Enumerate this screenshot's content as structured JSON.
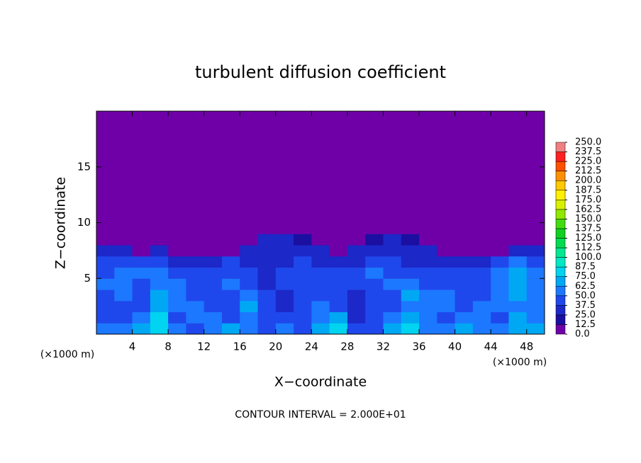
{
  "chart_data": {
    "type": "heatmap",
    "title": "turbulent diffusion coefficient",
    "xlabel": "X−coordinate",
    "ylabel": "Z−coordinate",
    "xunit": "(×1000 m)",
    "yunit": "(×1000 m)",
    "footer": "CONTOUR INTERVAL = 2.000E+01",
    "xlim": [
      0,
      50
    ],
    "xticks": [
      4,
      8,
      12,
      16,
      20,
      24,
      28,
      32,
      36,
      40,
      44,
      48
    ],
    "ylim": [
      0,
      20
    ],
    "yticks": [
      5,
      10,
      15
    ],
    "clim": [
      0,
      250
    ],
    "cticks": [
      {
        "value": 0,
        "label": "0.0"
      },
      {
        "value": 12.5,
        "label": "12.5"
      },
      {
        "value": 25,
        "label": "25.0"
      },
      {
        "value": 37.5,
        "label": "37.5"
      },
      {
        "value": 50,
        "label": "50.0"
      },
      {
        "value": 62.5,
        "label": "62.5"
      },
      {
        "value": 75,
        "label": "75.0"
      },
      {
        "value": 87.5,
        "label": "87.5"
      },
      {
        "value": 100,
        "label": "100.0"
      },
      {
        "value": 112.5,
        "label": "112.5"
      },
      {
        "value": 125,
        "label": "125.0"
      },
      {
        "value": 137.5,
        "label": "137.5"
      },
      {
        "value": 150,
        "label": "150.0"
      },
      {
        "value": 162.5,
        "label": "162.5"
      },
      {
        "value": 175,
        "label": "175.0"
      },
      {
        "value": 187.5,
        "label": "187.5"
      },
      {
        "value": 200,
        "label": "200.0"
      },
      {
        "value": 212.5,
        "label": "212.5"
      },
      {
        "value": 225,
        "label": "225.0"
      },
      {
        "value": 237.5,
        "label": "237.5"
      },
      {
        "value": 250,
        "label": "250.0"
      }
    ],
    "colors": [
      "#6f00a8",
      "#1a0fa0",
      "#1c28c8",
      "#1f48ec",
      "#1c78ff",
      "#00a8f4",
      "#00d4f0",
      "#00e8c4",
      "#00e890",
      "#00dc50",
      "#10d020",
      "#40dc10",
      "#90e800",
      "#d8f000",
      "#fff000",
      "#ffc800",
      "#ff9000",
      "#ff5000",
      "#ff2020",
      "#f08080"
    ],
    "z": [
      [
        60,
        55,
        70,
        80,
        50,
        45,
        60,
        70,
        50,
        45,
        55,
        40,
        70,
        75,
        40,
        45,
        70,
        75,
        60,
        55,
        70,
        60,
        50,
        70,
        65
      ],
      [
        45,
        40,
        50,
        75,
        45,
        50,
        60,
        45,
        50,
        40,
        45,
        40,
        60,
        70,
        35,
        40,
        60,
        70,
        50,
        45,
        55,
        60,
        45,
        65,
        60
      ],
      [
        40,
        45,
        40,
        70,
        50,
        60,
        45,
        40,
        65,
        40,
        35,
        40,
        50,
        45,
        35,
        40,
        45,
        60,
        60,
        50,
        40,
        50,
        55,
        60,
        55
      ],
      [
        45,
        50,
        40,
        65,
        60,
        45,
        40,
        40,
        60,
        40,
        35,
        40,
        45,
        40,
        35,
        40,
        40,
        65,
        60,
        55,
        40,
        40,
        60,
        65,
        55
      ],
      [
        50,
        55,
        45,
        60,
        55,
        40,
        40,
        60,
        40,
        35,
        40,
        40,
        40,
        40,
        40,
        45,
        60,
        50,
        45,
        40,
        40,
        40,
        60,
        70,
        60
      ],
      [
        45,
        60,
        50,
        50,
        40,
        40,
        45,
        40,
        40,
        35,
        40,
        45,
        40,
        40,
        40,
        60,
        45,
        40,
        40,
        40,
        40,
        45,
        55,
        65,
        55
      ],
      [
        40,
        45,
        40,
        40,
        35,
        30,
        35,
        40,
        35,
        30,
        35,
        40,
        35,
        30,
        35,
        40,
        40,
        35,
        30,
        30,
        25,
        35,
        40,
        50,
        45
      ],
      [
        30,
        35,
        0,
        25,
        0,
        0,
        0,
        0,
        25,
        30,
        35,
        30,
        25,
        0,
        30,
        35,
        35,
        30,
        25,
        0,
        0,
        0,
        0,
        35,
        35
      ],
      [
        0,
        0,
        0,
        0,
        0,
        0,
        0,
        0,
        0,
        25,
        25,
        20,
        0,
        0,
        0,
        20,
        25,
        15,
        0,
        0,
        0,
        0,
        0,
        0,
        0
      ],
      [
        0,
        0,
        0,
        0,
        0,
        0,
        0,
        0,
        0,
        0,
        0,
        0,
        0,
        0,
        0,
        0,
        0,
        0,
        0,
        0,
        0,
        0,
        0,
        0,
        0
      ],
      [
        0,
        0,
        0,
        0,
        0,
        0,
        0,
        0,
        0,
        0,
        0,
        0,
        0,
        0,
        0,
        0,
        0,
        0,
        0,
        0,
        0,
        0,
        0,
        0,
        0
      ],
      [
        0,
        0,
        0,
        0,
        0,
        0,
        0,
        0,
        0,
        0,
        0,
        0,
        0,
        0,
        0,
        0,
        0,
        0,
        0,
        0,
        0,
        0,
        0,
        0,
        0
      ],
      [
        0,
        0,
        0,
        0,
        0,
        0,
        0,
        0,
        0,
        0,
        0,
        0,
        0,
        0,
        0,
        0,
        0,
        0,
        0,
        0,
        0,
        0,
        0,
        0,
        0
      ],
      [
        0,
        0,
        0,
        0,
        0,
        0,
        0,
        0,
        0,
        0,
        0,
        0,
        0,
        0,
        0,
        0,
        0,
        0,
        0,
        0,
        0,
        0,
        0,
        0,
        0
      ],
      [
        0,
        0,
        0,
        0,
        0,
        0,
        0,
        0,
        0,
        0,
        0,
        0,
        0,
        0,
        0,
        0,
        0,
        0,
        0,
        0,
        0,
        0,
        0,
        0,
        0
      ],
      [
        0,
        0,
        0,
        0,
        0,
        0,
        0,
        0,
        0,
        0,
        0,
        0,
        0,
        0,
        0,
        0,
        0,
        0,
        0,
        0,
        0,
        0,
        0,
        0,
        0
      ],
      [
        0,
        0,
        0,
        0,
        0,
        0,
        0,
        0,
        0,
        0,
        0,
        0,
        0,
        0,
        0,
        0,
        0,
        0,
        0,
        0,
        0,
        0,
        0,
        0,
        0
      ],
      [
        0,
        0,
        0,
        0,
        0,
        0,
        0,
        0,
        0,
        0,
        0,
        0,
        0,
        0,
        0,
        0,
        0,
        0,
        0,
        0,
        0,
        0,
        0,
        0,
        0
      ],
      [
        0,
        0,
        0,
        0,
        0,
        0,
        0,
        0,
        0,
        0,
        0,
        0,
        0,
        0,
        0,
        0,
        0,
        0,
        0,
        0,
        0,
        0,
        0,
        0,
        0
      ],
      [
        0,
        0,
        0,
        0,
        0,
        0,
        0,
        0,
        0,
        0,
        0,
        0,
        0,
        0,
        0,
        0,
        0,
        0,
        0,
        0,
        0,
        0,
        0,
        0,
        0
      ]
    ]
  }
}
